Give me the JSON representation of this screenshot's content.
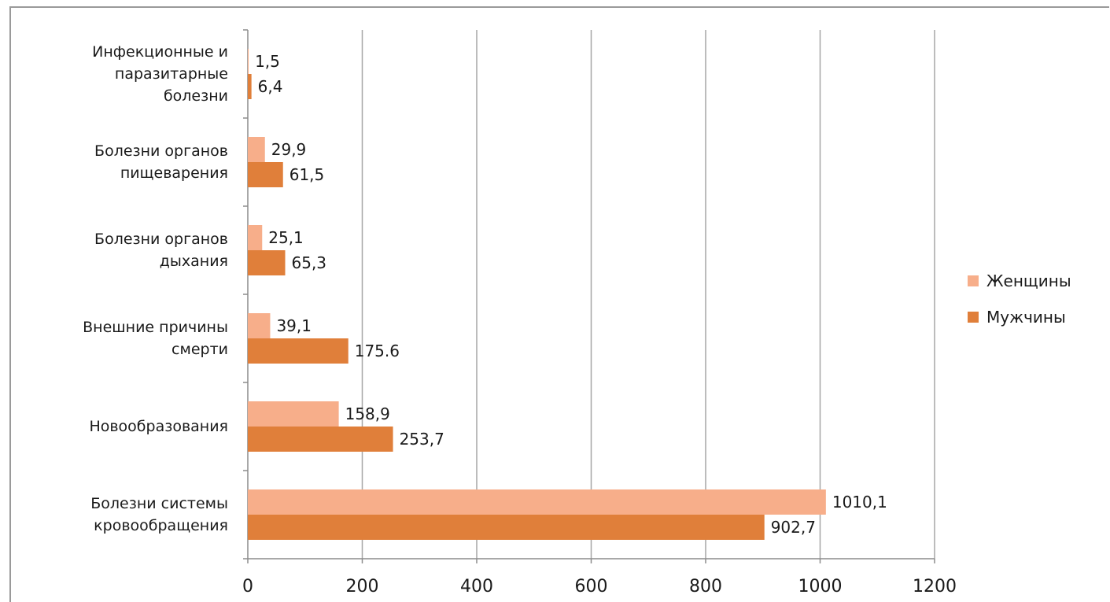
{
  "chart_data": {
    "type": "bar",
    "orientation": "horizontal",
    "categories": [
      "Инфекционные и паразитарные болезни",
      "Болезни органов пищеварения",
      "Болезни органов дыхания",
      "Внешние причины смерти",
      "Новообразования",
      "Болезни системы кровообращения"
    ],
    "category_lines": [
      [
        "Инфекционные и",
        "паразитарные",
        "болезни"
      ],
      [
        "Болезни органов",
        "пищеварения"
      ],
      [
        "Болезни органов",
        "дыхания"
      ],
      [
        "Внешние причины",
        "смерти"
      ],
      [
        "Новообразования"
      ],
      [
        "Болезни системы",
        "кровообращения"
      ]
    ],
    "series": [
      {
        "name": "Женщины",
        "color": "#f7ae8a",
        "values": [
          1.5,
          29.9,
          25.1,
          39.1,
          158.9,
          1010.1
        ],
        "labels": [
          "1,5",
          "29,9",
          "25,1",
          "39,1",
          "158,9",
          "1010,1"
        ]
      },
      {
        "name": "Мужчины",
        "color": "#e07f3a",
        "values": [
          6.4,
          61.5,
          65.3,
          175.6,
          253.7,
          902.7
        ],
        "labels": [
          "6,4",
          "61,5",
          "65,3",
          "175.6",
          "253,7",
          "902,7"
        ]
      }
    ],
    "xlim": [
      0,
      1200
    ],
    "xticks": [
      0,
      200,
      400,
      600,
      800,
      1000,
      1200
    ],
    "xtick_labels": [
      "0",
      "200",
      "400",
      "600",
      "800",
      "1000",
      "1200"
    ],
    "grid": "vertical",
    "legend_position": "right",
    "title": "",
    "xlabel": "",
    "ylabel": ""
  }
}
